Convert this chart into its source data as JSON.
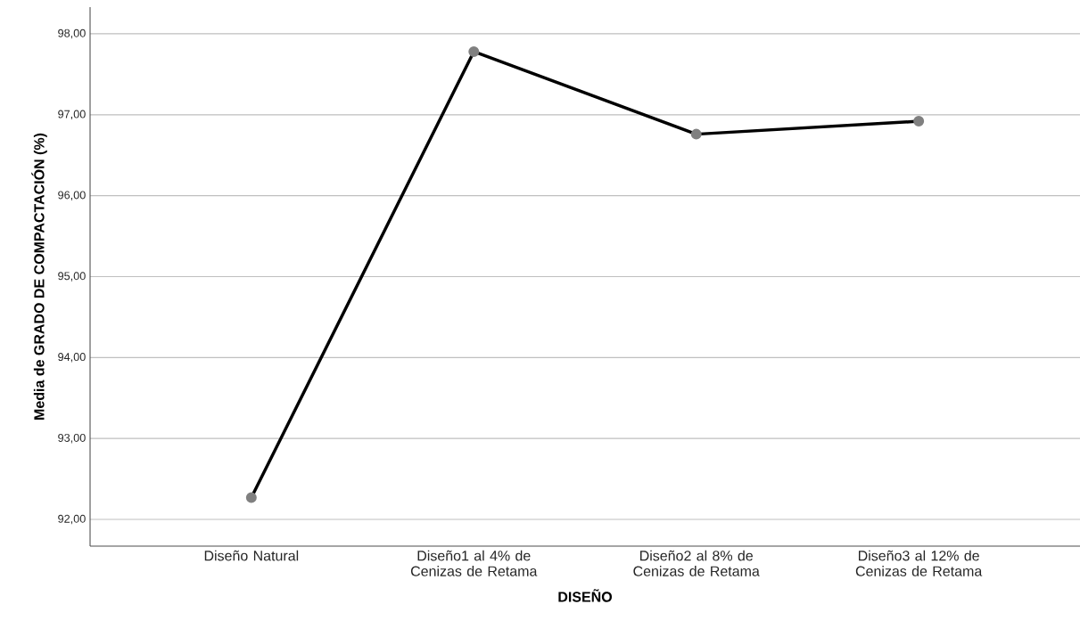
{
  "chart_data": {
    "type": "line",
    "xlabel": "DISEÑO",
    "ylabel": "Media de GRADO DE COMPACTACIÓN (%)",
    "categories": [
      "Diseño Natural",
      "Diseño1 al 4% de Cenizas de Retama",
      "Diseño2 al 8% de Cenizas de Retama",
      "Diseño3 al 12% de Cenizas de Retama"
    ],
    "series": [
      {
        "color": "#000000",
        "values": [
          92.27,
          97.78,
          96.76,
          96.92
        ]
      }
    ],
    "ylim": [
      91.67,
      98.33
    ],
    "yticks": [
      {
        "value": 92,
        "label": "92,00"
      },
      {
        "value": 93,
        "label": "93,00"
      },
      {
        "value": 94,
        "label": "94,00"
      },
      {
        "value": 95,
        "label": "95,00"
      },
      {
        "value": 96,
        "label": "96,00"
      },
      {
        "value": 97,
        "label": "97,00"
      },
      {
        "value": 98,
        "label": "98,00"
      }
    ],
    "grid": "y",
    "marker": "circle",
    "line_style": "solid"
  }
}
